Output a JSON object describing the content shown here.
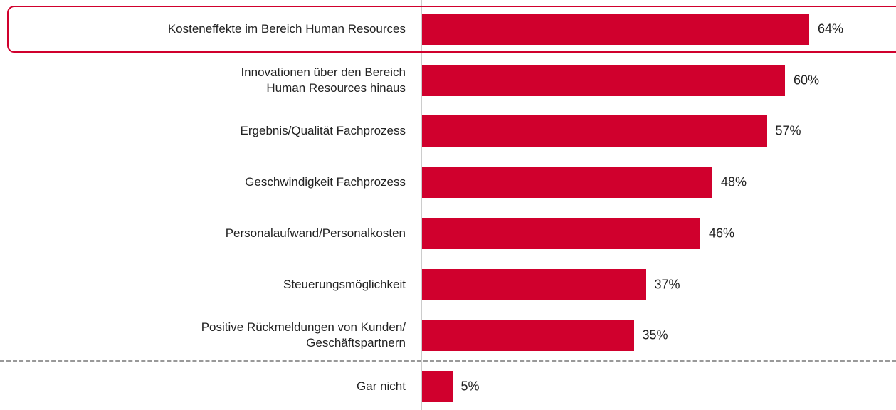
{
  "chart_data": {
    "type": "bar",
    "orientation": "horizontal",
    "categories": [
      "Kosteneffekte im Bereich Human Resources",
      "Innovationen über den Bereich\nHuman Resources hinaus",
      "Ergebnis/Qualität Fachprozess",
      "Geschwindigkeit Fachprozess",
      "Personalaufwand/Personalkosten",
      "Steuerungsmöglichkeit",
      "Positive Rückmeldungen von Kunden/\nGeschäftspartnern",
      "Gar nicht"
    ],
    "values": [
      64,
      60,
      57,
      48,
      46,
      37,
      35,
      5
    ],
    "value_labels": [
      "64%",
      "60%",
      "57%",
      "48%",
      "46%",
      "37%",
      "35%",
      "5%"
    ],
    "color": "#d0002d"
  }
}
